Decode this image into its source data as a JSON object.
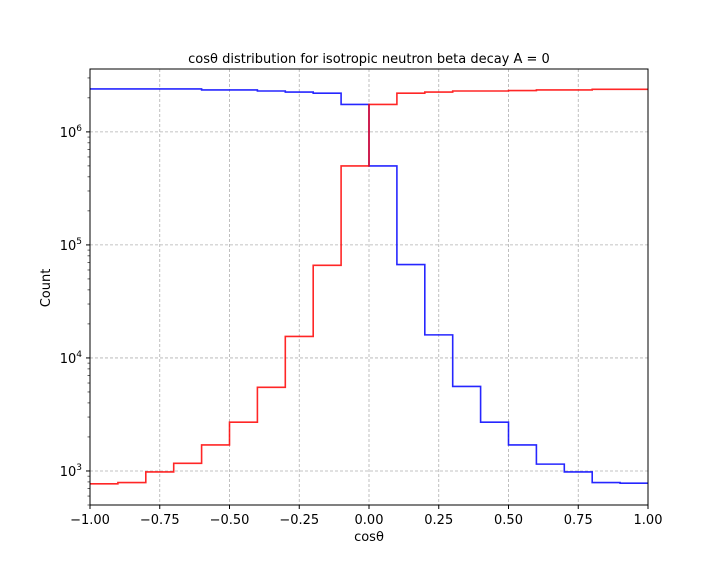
{
  "chart_data": {
    "type": "line",
    "title": "cosθ distribution for isotropic neutron beta decay A = 0",
    "xlabel": "cosθ",
    "ylabel": "Count",
    "xlim": [
      -1.0,
      1.0
    ],
    "ylim": [
      500,
      3600000
    ],
    "yscale": "log",
    "grid": true,
    "x_ticks": [
      -1.0,
      -0.75,
      -0.5,
      -0.25,
      0.0,
      0.25,
      0.5,
      0.75,
      1.0
    ],
    "x_tick_labels": [
      "−1.00",
      "−0.75",
      "−0.50",
      "−0.25",
      "0.00",
      "0.25",
      "0.50",
      "0.75",
      "1.00"
    ],
    "y_ticks": [
      1000,
      10000,
      100000,
      1000000
    ],
    "y_tick_labels": [
      {
        "base": "10",
        "exp": "3"
      },
      {
        "base": "10",
        "exp": "4"
      },
      {
        "base": "10",
        "exp": "5"
      },
      {
        "base": "10",
        "exp": "6"
      }
    ],
    "bin_edges": [
      -1.0,
      -0.9,
      -0.8,
      -0.7,
      -0.6,
      -0.5,
      -0.4,
      -0.3,
      -0.2,
      -0.1,
      0.0,
      0.1,
      0.2,
      0.3,
      0.4,
      0.5,
      0.6,
      0.7,
      0.8,
      0.9,
      1.0
    ],
    "series": [
      {
        "color": "#0000ff",
        "values": [
          2400000,
          2400000,
          2400000,
          2400000,
          2350000,
          2350000,
          2300000,
          2250000,
          2200000,
          1750000,
          500000,
          67000,
          16000,
          5600,
          2700,
          1700,
          1150,
          980,
          790,
          780
        ]
      },
      {
        "color": "#ff0000",
        "values": [
          770,
          790,
          980,
          1170,
          1700,
          2700,
          5500,
          15500,
          66000,
          500000,
          1750000,
          2200000,
          2250000,
          2300000,
          2300000,
          2320000,
          2350000,
          2350000,
          2380000,
          2380000
        ]
      }
    ]
  }
}
